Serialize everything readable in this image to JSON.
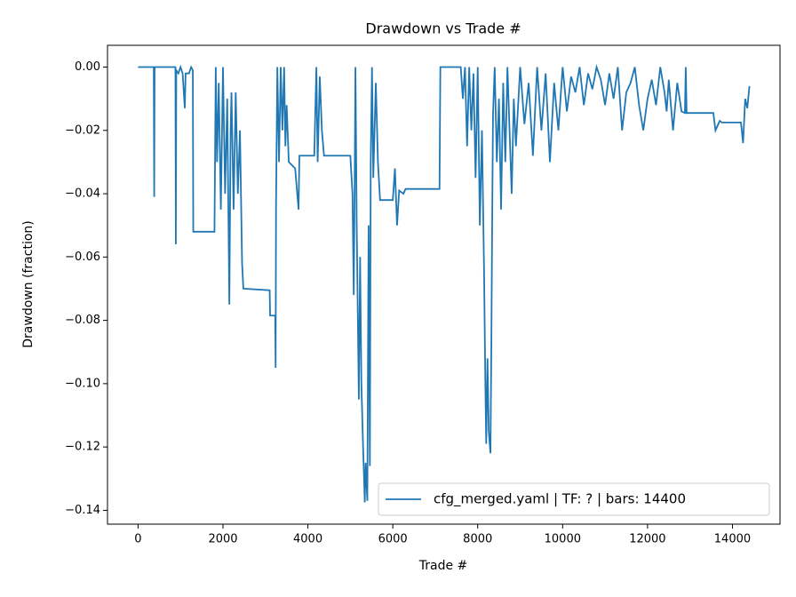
{
  "chart_data": {
    "type": "line",
    "title": "Drawdown vs Trade #",
    "x_label": "Trade #",
    "y_label": "Drawdown (fraction)",
    "xlim": [
      -720,
      15120
    ],
    "xticks": [
      0,
      2000,
      4000,
      6000,
      8000,
      10000,
      12000,
      14000
    ],
    "ylim": [
      -0.144375,
      0.006875
    ],
    "yticks": [
      {
        "value": 0,
        "label": "0.00"
      },
      {
        "value": -0.02,
        "label": "−0.02"
      },
      {
        "value": -0.04,
        "label": "−0.04"
      },
      {
        "value": -0.06,
        "label": "−0.06"
      },
      {
        "value": -0.08,
        "label": "−0.08"
      },
      {
        "value": -0.1,
        "label": "−0.10"
      },
      {
        "value": -0.12,
        "label": "−0.12"
      },
      {
        "value": -0.14,
        "label": "−0.14"
      }
    ],
    "legend": "lower right",
    "x": [
      0,
      370,
      380,
      390,
      880,
      890,
      900,
      950,
      1000,
      1050,
      1100,
      1120,
      1200,
      1250,
      1290,
      1300,
      1800,
      1830,
      1860,
      1900,
      1950,
      2000,
      2050,
      2100,
      2150,
      2180,
      2200,
      2250,
      2300,
      2350,
      2400,
      2450,
      2480,
      3100,
      3110,
      3230,
      3240,
      3250,
      3280,
      3320,
      3360,
      3400,
      3440,
      3470,
      3500,
      3550,
      3700,
      3780,
      3800,
      4150,
      4200,
      4230,
      4280,
      4330,
      4380,
      5000,
      5050,
      5080,
      5100,
      5120,
      5150,
      5200,
      5230,
      5260,
      5300,
      5340,
      5360,
      5400,
      5430,
      5460,
      5480,
      5510,
      5540,
      5600,
      5650,
      5700,
      6000,
      6050,
      6100,
      6150,
      6250,
      6300,
      7100,
      7120,
      7600,
      7650,
      7700,
      7750,
      7800,
      7850,
      7900,
      7950,
      8000,
      8050,
      8100,
      8150,
      8180,
      8200,
      8230,
      8260,
      8300,
      8320,
      8340,
      8360,
      8400,
      8450,
      8500,
      8550,
      8600,
      8650,
      8700,
      8750,
      8800,
      8850,
      8900,
      9000,
      9100,
      9200,
      9300,
      9400,
      9500,
      9600,
      9700,
      9800,
      9900,
      10000,
      10100,
      10200,
      10300,
      10400,
      10500,
      10600,
      10700,
      10800,
      10900,
      11000,
      11100,
      11200,
      11300,
      11400,
      11500,
      11600,
      11700,
      11800,
      11900,
      12000,
      12100,
      12200,
      12300,
      12400,
      12450,
      12500,
      12600,
      12700,
      12800,
      12880,
      12900,
      12920,
      13550,
      13600,
      13700,
      13750,
      14200,
      14250,
      14300,
      14350,
      14400
    ],
    "series": [
      {
        "name": "cfg_merged.yaml | TF: ? | bars: 14400",
        "color": "#1f77b4",
        "values": [
          0,
          0,
          -0.041,
          0,
          0,
          -0.056,
          -0.001,
          -0.002,
          0,
          -0.002,
          -0.013,
          -0.002,
          -0.002,
          0,
          -0.001,
          -0.052,
          -0.052,
          0,
          -0.03,
          -0.005,
          -0.045,
          0,
          -0.04,
          -0.01,
          -0.075,
          -0.02,
          -0.008,
          -0.045,
          -0.008,
          -0.04,
          -0.02,
          -0.062,
          -0.07,
          -0.0705,
          -0.0785,
          -0.0785,
          -0.095,
          -0.043,
          0,
          -0.03,
          0,
          -0.02,
          0,
          -0.025,
          -0.012,
          -0.03,
          -0.032,
          -0.045,
          -0.028,
          -0.028,
          0,
          -0.03,
          -0.003,
          -0.02,
          -0.028,
          -0.028,
          -0.04,
          -0.072,
          -0.04,
          0,
          -0.05,
          -0.105,
          -0.06,
          -0.1,
          -0.12,
          -0.1375,
          -0.125,
          -0.137,
          -0.05,
          -0.126,
          -0.03,
          0,
          -0.035,
          -0.005,
          -0.03,
          -0.042,
          -0.042,
          -0.032,
          -0.05,
          -0.039,
          -0.04,
          -0.0385,
          -0.0385,
          0,
          0,
          -0.01,
          0,
          -0.025,
          0,
          -0.02,
          -0.002,
          -0.035,
          0,
          -0.05,
          -0.02,
          -0.065,
          -0.1,
          -0.119,
          -0.092,
          -0.115,
          -0.122,
          -0.09,
          -0.05,
          -0.015,
          0,
          -0.03,
          -0.01,
          -0.045,
          -0.005,
          -0.03,
          0,
          -0.02,
          -0.04,
          -0.01,
          -0.025,
          0,
          -0.018,
          -0.005,
          -0.028,
          0,
          -0.02,
          -0.002,
          -0.03,
          -0.005,
          -0.02,
          0,
          -0.014,
          -0.003,
          -0.008,
          0,
          -0.012,
          -0.002,
          -0.007,
          0,
          -0.004,
          -0.012,
          -0.002,
          -0.01,
          0,
          -0.02,
          -0.008,
          -0.005,
          0,
          -0.012,
          -0.02,
          -0.01,
          -0.004,
          -0.012,
          0,
          -0.008,
          -0.014,
          -0.004,
          -0.02,
          -0.005,
          -0.014,
          -0.0145,
          0,
          -0.0145,
          -0.0145,
          -0.02,
          -0.017,
          -0.0175,
          -0.0175,
          -0.024,
          -0.01,
          -0.013,
          -0.006
        ]
      }
    ]
  }
}
